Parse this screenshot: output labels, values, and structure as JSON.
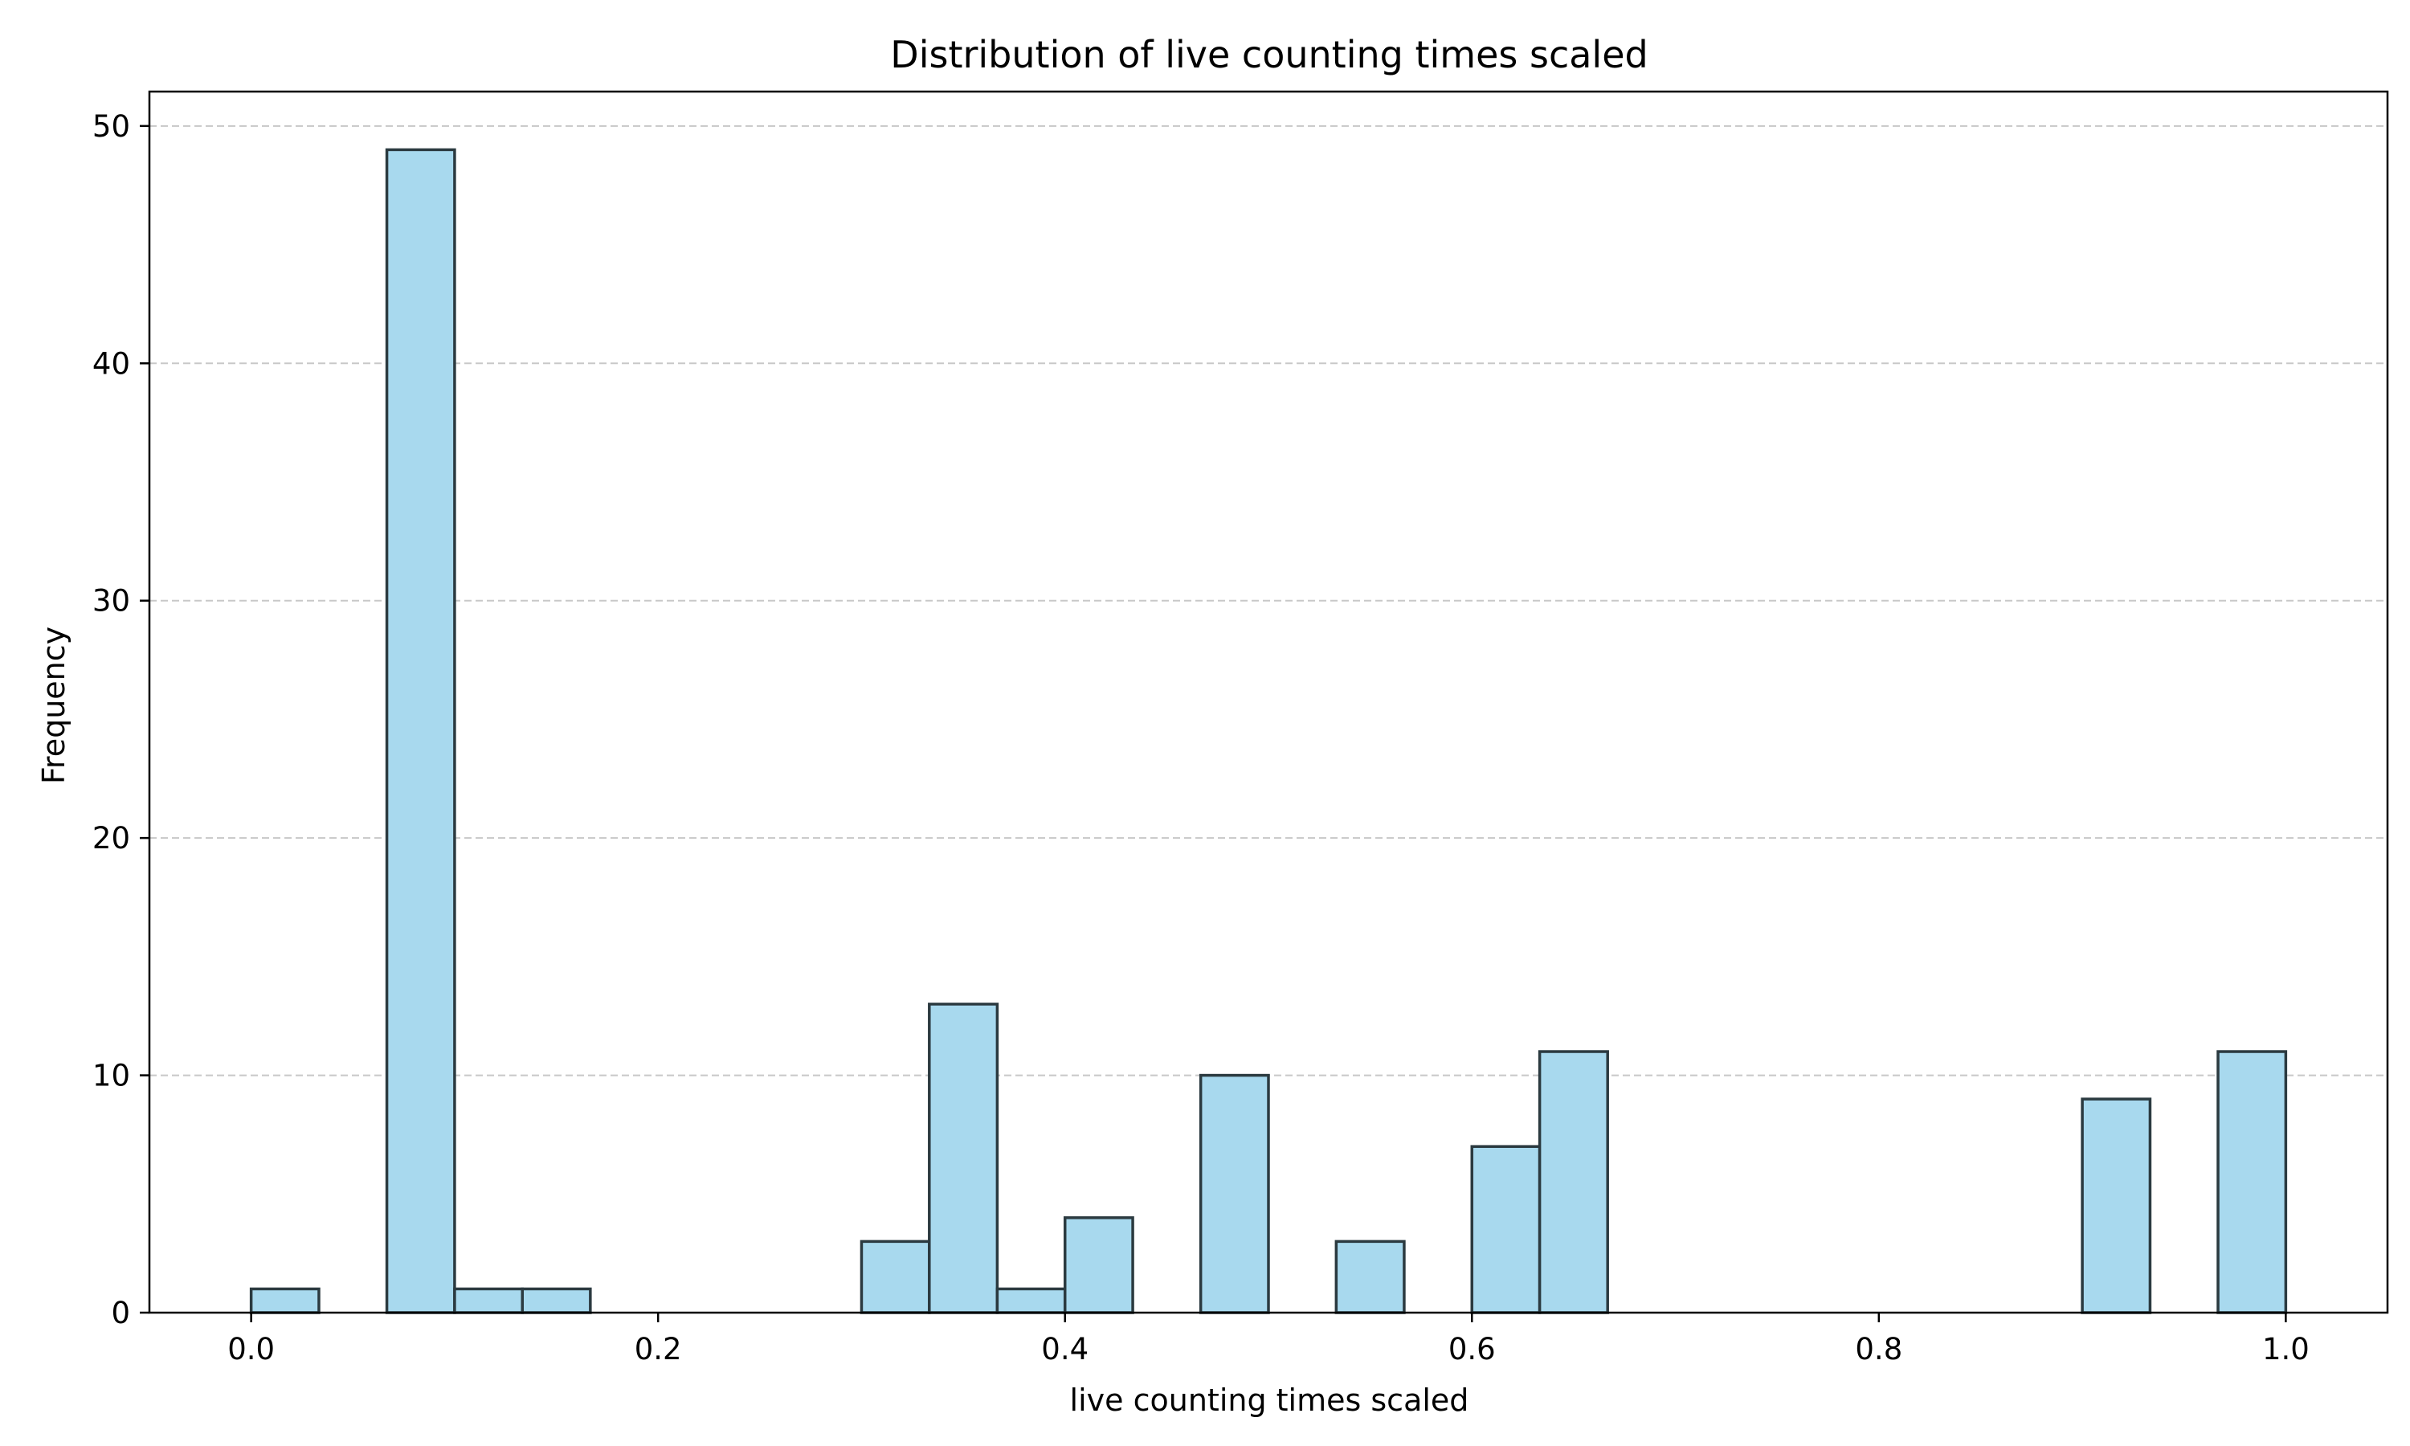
{
  "chart_data": {
    "type": "bar",
    "title": "Distribution of live counting times scaled",
    "xlabel": "live counting times scaled",
    "ylabel": "Frequency",
    "xlim": [
      -0.05,
      1.05
    ],
    "ylim": [
      0,
      51.45
    ],
    "x_ticks": [
      0.0,
      0.2,
      0.4,
      0.6,
      0.8,
      1.0
    ],
    "x_tick_labels": [
      "0.0",
      "0.2",
      "0.4",
      "0.6",
      "0.8",
      "1.0"
    ],
    "y_ticks": [
      0,
      10,
      20,
      30,
      40,
      50
    ],
    "y_tick_labels": [
      "0",
      "10",
      "20",
      "30",
      "40",
      "50"
    ],
    "grid": "y-dashed",
    "bin_edges": [
      0.0,
      0.0333,
      0.0667,
      0.1,
      0.1333,
      0.1667,
      0.2,
      0.2333,
      0.2667,
      0.3,
      0.3333,
      0.3667,
      0.4,
      0.4333,
      0.4667,
      0.5,
      0.5333,
      0.5667,
      0.6,
      0.6333,
      0.6667,
      0.7,
      0.7333,
      0.7667,
      0.8,
      0.8333,
      0.8667,
      0.9,
      0.9333,
      0.9667,
      1.0
    ],
    "values": [
      1,
      0,
      49,
      1,
      1,
      0,
      0,
      0,
      0,
      3,
      13,
      1,
      4,
      0,
      10,
      0,
      3,
      0,
      7,
      11,
      0,
      0,
      0,
      0,
      0,
      0,
      0,
      9,
      0,
      11
    ],
    "bar_fill": "#a8d9ee",
    "bar_edge": "#2b3a40",
    "grid_color": "#c8c8c8"
  }
}
